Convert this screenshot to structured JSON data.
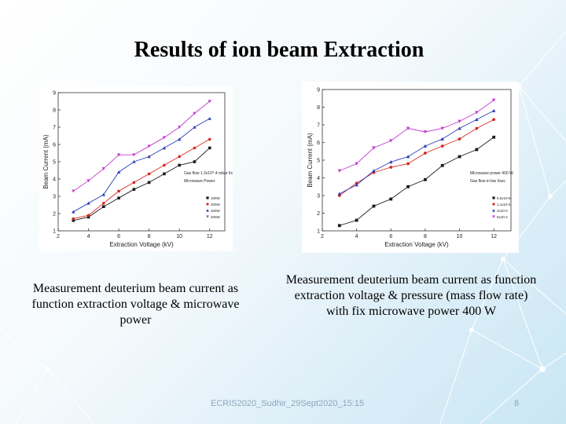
{
  "slide": {
    "title": "Results of ion beam Extraction",
    "caption_left": "Measurement deuterium beam current as function extraction voltage & microwave power",
    "caption_right": "Measurement deuterium beam current as function extraction voltage & pressure (mass flow rate) with fix microwave power 400 W",
    "footer": "ECRIS2020_Sudhir_29Sept2020_15:15",
    "page_number": "8"
  },
  "colors": {
    "black": "#1a1a1a",
    "red": "#d42a1f",
    "blue": "#2b3db8",
    "magenta": "#c43bd0"
  },
  "chart_data": [
    {
      "type": "line",
      "xlabel": "Extraction Voltage (kV)",
      "ylabel": "Beam Current (mA)",
      "xlim": [
        2,
        13
      ],
      "ylim": [
        1,
        9
      ],
      "xticks": [
        2,
        4,
        6,
        8,
        10,
        12
      ],
      "yticks": [
        1,
        2,
        3,
        4,
        5,
        6,
        7,
        8,
        9
      ],
      "annotation_lines": [
        "Gas flow 1.3x10^-4 mbar l/s",
        "Microwave Power"
      ],
      "legend_position": "bottom-right",
      "series": [
        {
          "name": "100W",
          "color": "black",
          "marker": "square",
          "x": [
            3,
            4,
            5,
            6,
            7,
            8,
            9,
            10,
            11,
            12
          ],
          "y": [
            1.6,
            1.8,
            2.4,
            2.9,
            3.4,
            3.8,
            4.3,
            4.8,
            5.0,
            5.8
          ]
        },
        {
          "name": "200W",
          "color": "red",
          "marker": "circle",
          "x": [
            3,
            4,
            5,
            6,
            7,
            8,
            9,
            10,
            11,
            12
          ],
          "y": [
            1.7,
            1.9,
            2.6,
            3.3,
            3.8,
            4.3,
            4.8,
            5.3,
            5.8,
            6.3
          ]
        },
        {
          "name": "300W",
          "color": "blue",
          "marker": "triangle-up",
          "x": [
            3,
            4,
            5,
            6,
            7,
            8,
            9,
            10,
            11,
            12
          ],
          "y": [
            2.1,
            2.6,
            3.1,
            4.4,
            5.0,
            5.3,
            5.8,
            6.3,
            7.0,
            7.5
          ]
        },
        {
          "name": "400W",
          "color": "magenta",
          "marker": "triangle-down",
          "x": [
            3,
            4,
            5,
            6,
            7,
            8,
            9,
            10,
            11,
            12
          ],
          "y": [
            3.3,
            3.9,
            4.6,
            5.4,
            5.4,
            5.9,
            6.4,
            7.0,
            7.8,
            8.5
          ]
        }
      ]
    },
    {
      "type": "line",
      "xlabel": "Extraction Voltage (kV)",
      "ylabel": "Beam Current (mA)",
      "xlim": [
        2,
        13
      ],
      "ylim": [
        1,
        9
      ],
      "xticks": [
        2,
        4,
        6,
        8,
        10,
        12
      ],
      "yticks": [
        1,
        2,
        3,
        4,
        5,
        6,
        7,
        8,
        9
      ],
      "annotation_lines": [
        "Microwave power 400 W",
        "Gas flow in bar l/sec"
      ],
      "legend_position": "bottom-right",
      "series": [
        {
          "name": "6.5x10-5",
          "color": "black",
          "marker": "square",
          "x": [
            3,
            4,
            5,
            6,
            7,
            8,
            9,
            10,
            11,
            12
          ],
          "y": [
            1.3,
            1.6,
            2.4,
            2.8,
            3.5,
            3.9,
            4.7,
            5.2,
            5.6,
            6.3
          ]
        },
        {
          "name": "1.1x10-4",
          "color": "red",
          "marker": "circle",
          "x": [
            3,
            4,
            5,
            6,
            7,
            8,
            9,
            10,
            11,
            12
          ],
          "y": [
            3.0,
            3.7,
            4.3,
            4.6,
            4.8,
            5.4,
            5.8,
            6.2,
            6.8,
            7.3
          ]
        },
        {
          "name": "2x10-4",
          "color": "blue",
          "marker": "triangle-up",
          "x": [
            3,
            4,
            5,
            6,
            7,
            8,
            9,
            10,
            11,
            12
          ],
          "y": [
            3.1,
            3.6,
            4.4,
            4.9,
            5.2,
            5.8,
            6.2,
            6.8,
            7.3,
            7.8
          ]
        },
        {
          "name": "5x10-4",
          "color": "magenta",
          "marker": "triangle-down",
          "x": [
            3,
            4,
            5,
            6,
            7,
            8,
            9,
            10,
            11,
            12
          ],
          "y": [
            4.4,
            4.8,
            5.7,
            6.1,
            6.8,
            6.6,
            6.8,
            7.2,
            7.7,
            8.4
          ]
        }
      ]
    }
  ]
}
